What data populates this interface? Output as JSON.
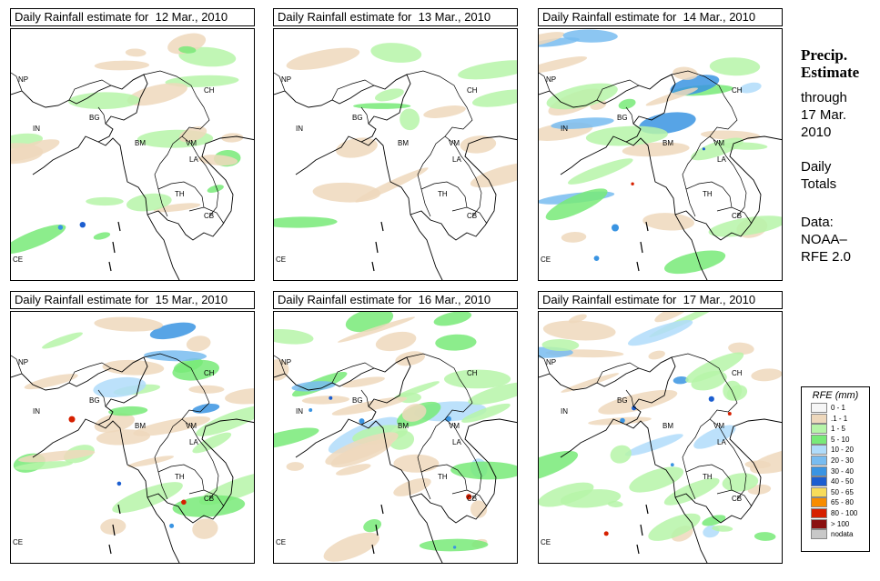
{
  "panels": [
    {
      "title": "Daily Rainfall estimate for  12 Mar., 2010",
      "intensity": 1,
      "seed": 11
    },
    {
      "title": "Daily Rainfall estimate for  13 Mar., 2010",
      "intensity": 0,
      "seed": 23
    },
    {
      "title": "Daily Rainfall estimate for  14 Mar., 2010",
      "intensity": 2,
      "seed": 37
    },
    {
      "title": "Daily Rainfall estimate for  15 Mar., 2010",
      "intensity": 2,
      "seed": 41
    },
    {
      "title": "Daily Rainfall estimate for  16 Mar., 2010",
      "intensity": 3,
      "seed": 53
    },
    {
      "title": "Daily Rainfall estimate for  17 Mar., 2010",
      "intensity": 3,
      "seed": 67
    }
  ],
  "region_labels": [
    "NP",
    "CH",
    "IN",
    "BG",
    "BM",
    "VM",
    "LA",
    "TH",
    "CB",
    "CE"
  ],
  "side": {
    "title_line1": "Precip.",
    "title_line2": "Estimate",
    "through": "through",
    "date_line1": "17 Mar.",
    "date_line2": "2010",
    "daily_line1": "Daily",
    "daily_line2": "Totals",
    "data_line1": "Data:",
    "data_line2": "NOAA–",
    "data_line3": "RFE 2.0"
  },
  "legend": {
    "title": "RFE (mm)",
    "items": [
      {
        "label": "0 - 1",
        "color": "#f6f6f6"
      },
      {
        "label": ".1 - 1",
        "color": "#eed8bc"
      },
      {
        "label": "1 - 5",
        "color": "#b6f5a8"
      },
      {
        "label": "5 - 10",
        "color": "#78ea78"
      },
      {
        "label": "10 - 20",
        "color": "#b0dcfa"
      },
      {
        "label": "20 - 30",
        "color": "#78bcf0"
      },
      {
        "label": "30 - 40",
        "color": "#3a94e2"
      },
      {
        "label": "40 - 50",
        "color": "#1c5ed0"
      },
      {
        "label": "50 - 65",
        "color": "#f8dc5a"
      },
      {
        "label": "65 - 80",
        "color": "#f88c00"
      },
      {
        "label": "80 - 100",
        "color": "#d62000"
      },
      {
        "label": "> 100",
        "color": "#8a1010"
      },
      {
        "label": "nodata",
        "color": "#c8c8c8"
      }
    ]
  }
}
